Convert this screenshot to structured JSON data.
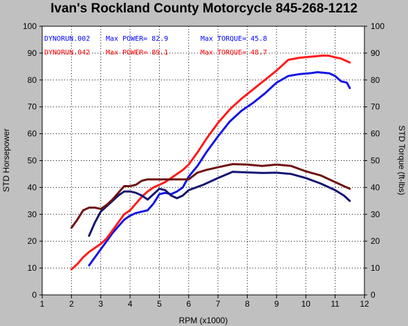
{
  "title": "Ivan's Rockland County Motorcycle  845-268-1212",
  "chart_data": {
    "type": "line",
    "xlabel": "RPM (x1000)",
    "ylabel_left": "STD Horsepower",
    "ylabel_right": "STD Torque (ft-lbs)",
    "xlim": [
      1,
      12
    ],
    "ylim": [
      0,
      100
    ],
    "x_ticks": [
      1,
      2,
      3,
      4,
      5,
      6,
      7,
      8,
      9,
      10,
      11,
      12
    ],
    "y_ticks": [
      0,
      10,
      20,
      30,
      40,
      50,
      60,
      70,
      80,
      90,
      100
    ],
    "grid": true,
    "legend": [
      {
        "run": "DYNORUN.002",
        "power": "Max POWER= 82.9",
        "torque": "Max TORQUE= 45.8",
        "color": "#0000ff"
      },
      {
        "run": "DYNORUN.042",
        "power": "Max POWER= 89.1",
        "torque": "Max TORQUE= 48.7",
        "color": "#ff0000"
      }
    ],
    "series": [
      {
        "key": "hp002",
        "color": "#1414e6",
        "x": [
          2.6,
          2.8,
          3.0,
          3.2,
          3.4,
          3.6,
          3.8,
          4.0,
          4.2,
          4.4,
          4.6,
          4.8,
          5.0,
          5.2,
          5.4,
          5.6,
          5.8,
          6.0,
          6.3,
          6.6,
          7.0,
          7.4,
          7.8,
          8.2,
          8.6,
          9.0,
          9.4,
          9.8,
          10.2,
          10.4,
          10.8,
          11.0,
          11.2,
          11.4,
          11.5
        ],
        "y": [
          11,
          14,
          17,
          20,
          23,
          25.5,
          28,
          29.5,
          30.5,
          31,
          31.5,
          34,
          37.5,
          38,
          37.5,
          38.5,
          40,
          44,
          48,
          53,
          59,
          64.5,
          68.5,
          71.5,
          75,
          79,
          81.5,
          82.2,
          82.6,
          82.9,
          82.5,
          81.5,
          79.5,
          79,
          77
        ]
      },
      {
        "key": "hp042",
        "color": "#ff1a1a",
        "x": [
          2.0,
          2.2,
          2.4,
          2.6,
          2.8,
          3.0,
          3.2,
          3.4,
          3.6,
          3.8,
          4.0,
          4.2,
          4.4,
          4.6,
          4.8,
          5.0,
          5.2,
          5.4,
          5.6,
          5.8,
          6.0,
          6.3,
          6.6,
          7.0,
          7.4,
          7.8,
          8.2,
          8.6,
          9.0,
          9.4,
          9.8,
          10.2,
          10.6,
          10.8,
          11.0,
          11.2,
          11.4,
          11.5
        ],
        "y": [
          9.5,
          11.5,
          14,
          16,
          17.5,
          19,
          21,
          24,
          27,
          30,
          31.5,
          34,
          36.5,
          38.5,
          40,
          41,
          42,
          43.5,
          45,
          46.5,
          48.5,
          53,
          58,
          64,
          69,
          73,
          76.5,
          80,
          83.5,
          87.5,
          88.3,
          88.7,
          89.1,
          89,
          88.4,
          88,
          87,
          86.5
        ]
      },
      {
        "key": "tq002",
        "color": "#141470",
        "x": [
          2.6,
          2.8,
          3.0,
          3.2,
          3.4,
          3.6,
          3.8,
          4.0,
          4.2,
          4.4,
          4.6,
          4.8,
          5.0,
          5.2,
          5.4,
          5.6,
          5.8,
          6.0,
          6.5,
          7.0,
          7.5,
          8.0,
          8.5,
          9.0,
          9.5,
          10.0,
          10.5,
          11.0,
          11.3,
          11.5
        ],
        "y": [
          22,
          27,
          31,
          33,
          35,
          37,
          38.5,
          38.5,
          38,
          37,
          35.5,
          37.5,
          39.5,
          39,
          37,
          36,
          37,
          39,
          41,
          43.5,
          45.8,
          45.6,
          45.4,
          45.5,
          45,
          43.5,
          41.5,
          39,
          37,
          35
        ]
      },
      {
        "key": "tq042",
        "color": "#6e0f0f",
        "x": [
          2.0,
          2.2,
          2.4,
          2.6,
          2.8,
          3.0,
          3.2,
          3.4,
          3.6,
          3.8,
          4.0,
          4.2,
          4.4,
          4.6,
          4.8,
          5.0,
          5.5,
          6.0,
          6.3,
          6.6,
          7.0,
          7.5,
          8.0,
          8.5,
          9.0,
          9.5,
          10.0,
          10.5,
          11.0,
          11.3,
          11.5
        ],
        "y": [
          25,
          28,
          31.5,
          32.5,
          32.5,
          32,
          33.5,
          35.5,
          38,
          40.5,
          40.5,
          41,
          42.5,
          43,
          43,
          43,
          43,
          43,
          45.5,
          46.5,
          47.5,
          48.7,
          48.5,
          48,
          48.5,
          48,
          46,
          44.5,
          42,
          40.5,
          39.5
        ]
      }
    ]
  }
}
